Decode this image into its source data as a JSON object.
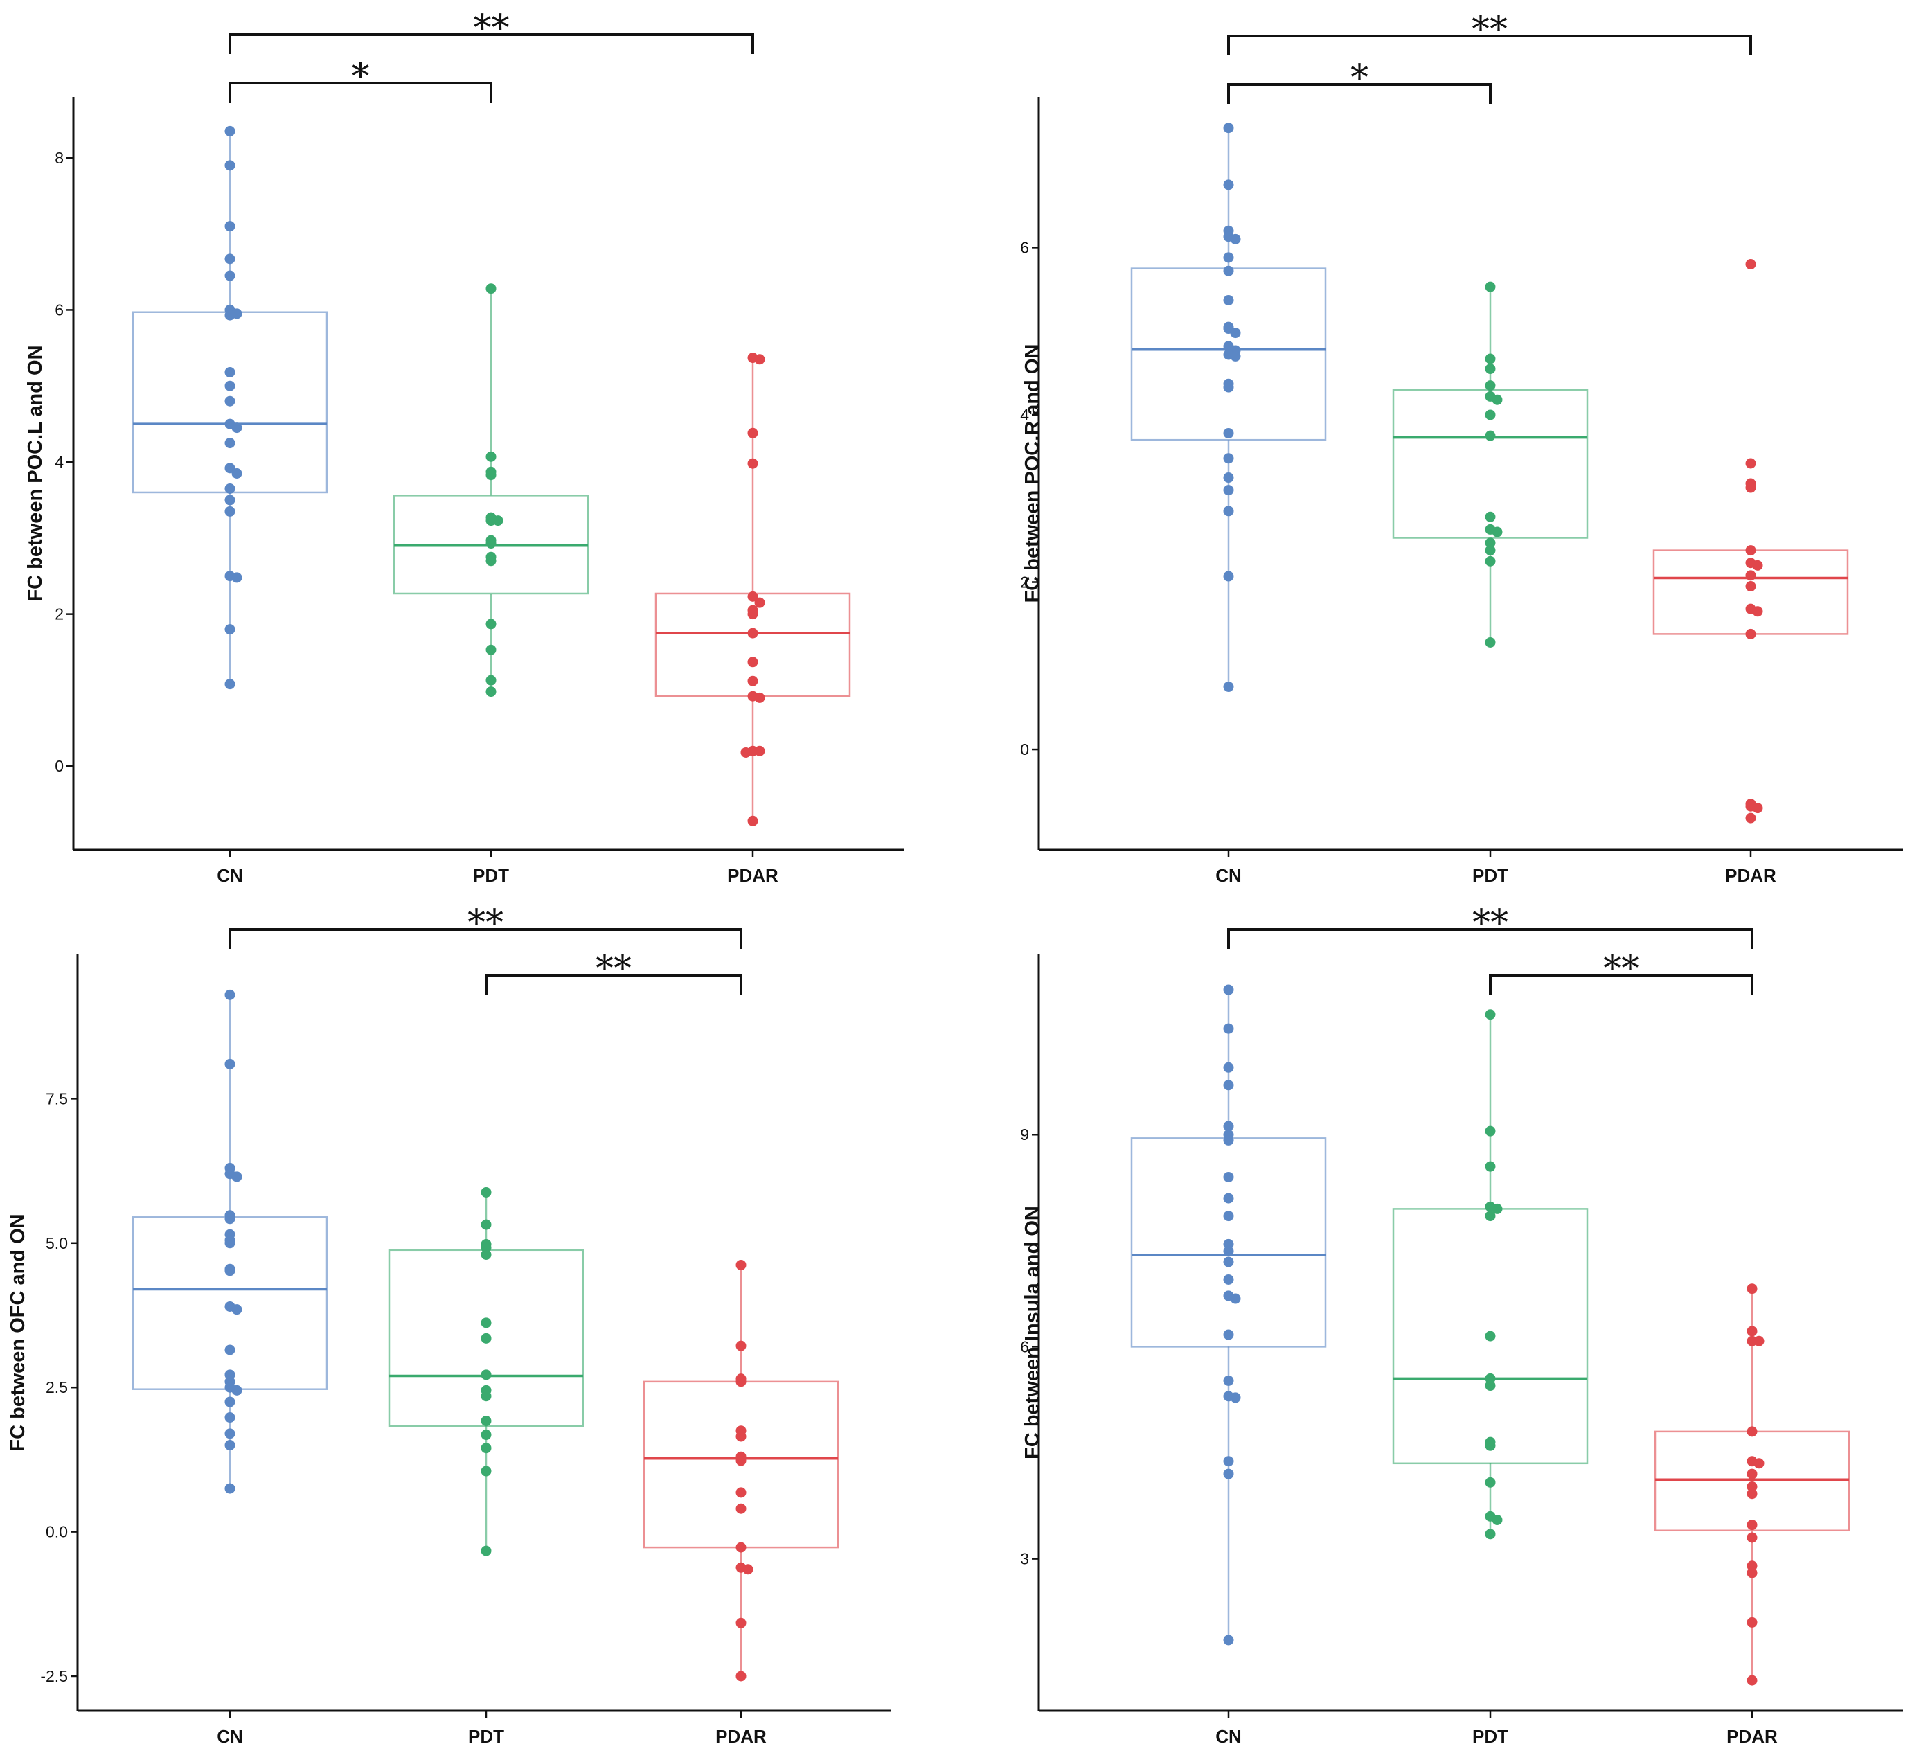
{
  "colors": {
    "CN": "#5b87c5",
    "PDT": "#3aaa6e",
    "PDAR": "#e0464b",
    "axis": "#111111"
  },
  "chart_data": [
    {
      "type": "box",
      "categories": [
        "CN",
        "PDT",
        "PDAR"
      ],
      "ylabel": "FC between POC.L and ON",
      "xlabel": "",
      "ylim": [
        -1.1,
        8.8
      ],
      "yticks": [
        0,
        2,
        4,
        6,
        8
      ],
      "ytick_labels": [
        "0",
        "2",
        "4",
        "6",
        "8"
      ],
      "boxes": [
        {
          "name": "CN",
          "q1": 3.6,
          "median": 4.5,
          "q3": 5.97,
          "whisker_low": 1.08,
          "whisker_high": 8.35,
          "points": [
            8.35,
            7.9,
            7.1,
            6.67,
            6.45,
            6.0,
            5.95,
            5.93,
            5.18,
            5.0,
            4.8,
            4.5,
            4.45,
            4.25,
            3.92,
            3.85,
            3.65,
            3.5,
            3.35,
            2.5,
            2.48,
            1.8,
            1.08
          ]
        },
        {
          "name": "PDT",
          "q1": 2.27,
          "median": 2.9,
          "q3": 3.56,
          "whisker_low": 0.98,
          "whisker_high": 6.28,
          "points": [
            6.28,
            4.07,
            3.87,
            3.83,
            3.27,
            3.23,
            3.23,
            2.97,
            2.93,
            2.75,
            2.7,
            1.87,
            1.53,
            1.13,
            0.98
          ]
        },
        {
          "name": "PDAR",
          "q1": 0.92,
          "median": 1.75,
          "q3": 2.27,
          "whisker_low": -0.72,
          "whisker_high": 5.37,
          "points": [
            5.37,
            5.35,
            4.38,
            3.98,
            2.23,
            2.15,
            2.05,
            2.0,
            1.75,
            1.37,
            1.12,
            0.92,
            0.9,
            0.2,
            0.2,
            0.18,
            -0.72
          ]
        }
      ],
      "significance": [
        {
          "from": "CN",
          "to": "PDAR",
          "label": "**",
          "level": 1
        },
        {
          "from": "CN",
          "to": "PDT",
          "label": "*",
          "level": 2
        }
      ]
    },
    {
      "type": "box",
      "categories": [
        "CN",
        "PDT",
        "PDAR"
      ],
      "ylabel": "FC between POC.R and ON",
      "xlabel": "",
      "ylim": [
        -1.2,
        7.8
      ],
      "yticks": [
        0,
        2,
        4,
        6
      ],
      "ytick_labels": [
        "0",
        "2",
        "4",
        "6"
      ],
      "boxes": [
        {
          "name": "CN",
          "q1": 3.7,
          "median": 4.78,
          "q3": 5.75,
          "whisker_low": 0.75,
          "whisker_high": 7.43,
          "points": [
            7.43,
            6.75,
            6.2,
            6.13,
            6.1,
            5.88,
            5.72,
            5.37,
            5.05,
            5.03,
            4.98,
            4.82,
            4.77,
            4.72,
            4.7,
            4.37,
            4.33,
            3.78,
            3.48,
            3.25,
            3.1,
            2.85,
            2.07,
            0.75
          ]
        },
        {
          "name": "PDT",
          "q1": 2.53,
          "median": 3.73,
          "q3": 4.3,
          "whisker_low": 1.28,
          "whisker_high": 5.53,
          "points": [
            5.53,
            4.67,
            4.55,
            4.35,
            4.22,
            4.18,
            4.0,
            3.75,
            2.78,
            2.63,
            2.6,
            2.47,
            2.38,
            2.25,
            1.28
          ]
        },
        {
          "name": "PDAR",
          "q1": 1.38,
          "median": 2.05,
          "q3": 2.38,
          "whisker_low": 1.38,
          "whisker_high": 2.38,
          "points": [
            5.8,
            3.42,
            3.18,
            3.13,
            2.38,
            2.23,
            2.2,
            2.08,
            1.95,
            1.68,
            1.65,
            1.38,
            -0.65,
            -0.68,
            -0.7,
            -0.82
          ]
        }
      ],
      "significance": [
        {
          "from": "CN",
          "to": "PDAR",
          "label": "**",
          "level": 1
        },
        {
          "from": "CN",
          "to": "PDT",
          "label": "*",
          "level": 2
        }
      ]
    },
    {
      "type": "box",
      "categories": [
        "CN",
        "PDT",
        "PDAR"
      ],
      "ylabel": "FC between OFC and ON",
      "xlabel": "",
      "ylim": [
        -3.1,
        10.0
      ],
      "yticks": [
        -2.5,
        0.0,
        2.5,
        5.0,
        7.5
      ],
      "ytick_labels": [
        "-2.5",
        "0.0",
        "2.5",
        "5.0",
        "7.5"
      ],
      "boxes": [
        {
          "name": "CN",
          "q1": 2.47,
          "median": 4.2,
          "q3": 5.45,
          "whisker_low": 0.75,
          "whisker_high": 9.3,
          "points": [
            9.3,
            8.1,
            6.3,
            6.2,
            6.15,
            5.48,
            5.42,
            5.15,
            5.05,
            5.0,
            4.55,
            4.52,
            3.9,
            3.85,
            3.15,
            2.72,
            2.6,
            2.5,
            2.45,
            2.25,
            1.98,
            1.7,
            1.5,
            0.75
          ]
        },
        {
          "name": "PDT",
          "q1": 1.83,
          "median": 2.7,
          "q3": 4.88,
          "whisker_low": -0.33,
          "whisker_high": 5.88,
          "points": [
            5.88,
            5.32,
            4.98,
            4.92,
            4.8,
            3.62,
            3.35,
            2.72,
            2.45,
            2.35,
            1.92,
            1.68,
            1.45,
            1.05,
            -0.33
          ]
        },
        {
          "name": "PDAR",
          "q1": -0.27,
          "median": 1.27,
          "q3": 2.6,
          "whisker_low": -2.5,
          "whisker_high": 4.62,
          "points": [
            4.62,
            3.22,
            2.65,
            2.6,
            1.75,
            1.65,
            1.3,
            1.23,
            0.68,
            0.4,
            -0.27,
            -0.62,
            -0.65,
            -1.58,
            -2.5
          ]
        }
      ],
      "significance": [
        {
          "from": "CN",
          "to": "PDAR",
          "label": "**",
          "level": 1
        },
        {
          "from": "PDT",
          "to": "PDAR",
          "label": "**",
          "level": 2
        }
      ]
    },
    {
      "type": "box",
      "categories": [
        "CN",
        "PDT",
        "PDAR"
      ],
      "ylabel": "FC between Insula and ON",
      "xlabel": "",
      "ylim": [
        0.85,
        11.55
      ],
      "yticks": [
        3,
        6,
        9
      ],
      "ytick_labels": [
        "3",
        "6",
        "9"
      ],
      "boxes": [
        {
          "name": "CN",
          "q1": 6.0,
          "median": 7.3,
          "q3": 8.95,
          "whisker_low": 1.85,
          "whisker_high": 11.05,
          "points": [
            11.05,
            10.5,
            9.95,
            9.7,
            9.12,
            9.0,
            8.92,
            8.4,
            8.1,
            7.85,
            7.45,
            7.35,
            7.2,
            6.95,
            6.72,
            6.68,
            6.17,
            5.52,
            5.3,
            5.28,
            4.38,
            4.2,
            1.85
          ]
        },
        {
          "name": "PDT",
          "q1": 4.35,
          "median": 5.55,
          "q3": 7.95,
          "whisker_low": 3.35,
          "whisker_high": 10.7,
          "points": [
            10.7,
            9.05,
            8.55,
            7.98,
            7.95,
            7.85,
            6.15,
            5.55,
            5.45,
            4.65,
            4.6,
            4.08,
            3.6,
            3.55,
            3.35
          ]
        },
        {
          "name": "PDAR",
          "q1": 3.4,
          "median": 4.12,
          "q3": 4.8,
          "whisker_low": 1.28,
          "whisker_high": 6.82,
          "points": [
            6.82,
            6.22,
            6.08,
            6.08,
            4.8,
            4.38,
            4.35,
            4.2,
            4.02,
            3.92,
            3.48,
            3.3,
            2.9,
            2.8,
            2.1,
            1.28
          ]
        }
      ],
      "significance": [
        {
          "from": "CN",
          "to": "PDAR",
          "label": "**",
          "level": 1
        },
        {
          "from": "PDT",
          "to": "PDAR",
          "label": "**",
          "level": 2
        }
      ]
    }
  ]
}
